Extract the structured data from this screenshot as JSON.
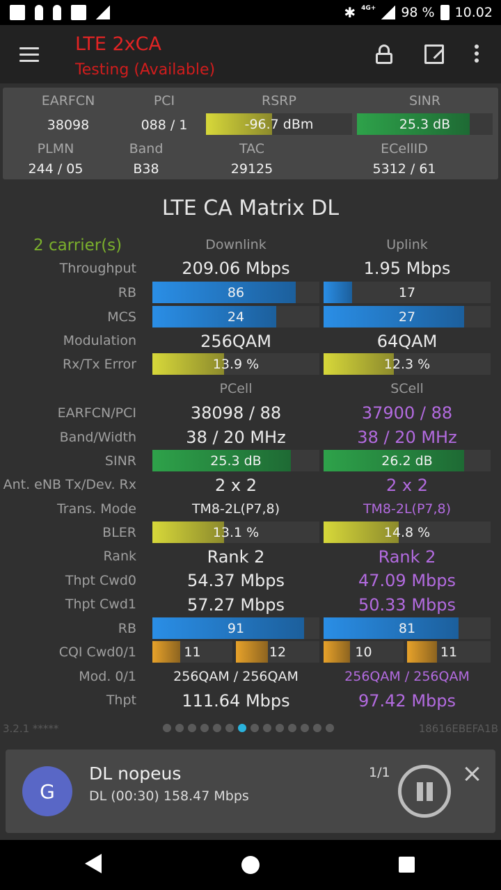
{
  "statusbar": {
    "battery": "98 %",
    "time": "10.02",
    "network": "4G+"
  },
  "appbar": {
    "title": "LTE 2xCA",
    "subtitle": "Testing (Available)"
  },
  "info": {
    "labels": {
      "earfcn": "EARFCN",
      "pci": "PCI",
      "rsrp": "RSRP",
      "sinr": "SINR",
      "plmn": "PLMN",
      "band": "Band",
      "tac": "TAC",
      "ecellid": "ECellID"
    },
    "earfcn": "38098",
    "pci": "088 / 1",
    "rsrp": {
      "text": "-96.7 dBm",
      "level": 0.45
    },
    "sinr": {
      "text": "25.3 dB",
      "level": 0.83
    },
    "plmn": "244 / 05",
    "band": "B38",
    "tac": "29125",
    "ecellid": "5312 / 61"
  },
  "matrix": {
    "title": "LTE CA Matrix DL",
    "carriers": "2 carrier(s)",
    "headers": {
      "downlink": "Downlink",
      "uplink": "Uplink",
      "pcell": "PCell",
      "scell": "SCell"
    },
    "labels": {
      "throughput": "Throughput",
      "rb": "RB",
      "mcs": "MCS",
      "modulation": "Modulation",
      "rxtx_error": "Rx/Tx Error",
      "earfcn_pci": "EARFCN/PCI",
      "band_width": "Band/Width",
      "sinr": "SINR",
      "ant": "Ant. eNB Tx/Dev. Rx",
      "trans_mode": "Trans. Mode",
      "bler": "BLER",
      "rank": "Rank",
      "thpt_cwd0": "Thpt Cwd0",
      "thpt_cwd1": "Thpt Cwd1",
      "rb2": "RB",
      "cqi": "CQI Cwd0/1",
      "mod01": "Mod. 0/1",
      "thpt": "Thpt"
    },
    "downlink": {
      "throughput": "209.06 Mbps",
      "rb": {
        "text": "86",
        "level": 0.86
      },
      "mcs": {
        "text": "24",
        "level": 0.74
      },
      "modulation": "256QAM",
      "error": {
        "text": "13.9 %",
        "level": 0.43
      }
    },
    "uplink": {
      "throughput": "1.95 Mbps",
      "rb": {
        "text": "17",
        "level": 0.17
      },
      "mcs": {
        "text": "27",
        "level": 0.84
      },
      "modulation": "64QAM",
      "error": {
        "text": "12.3 %",
        "level": 0.42
      }
    },
    "pcell": {
      "earfcn_pci": "38098 / 88",
      "band_width": "38 / 20 MHz",
      "sinr": {
        "text": "25.3 dB",
        "level": 0.83
      },
      "ant": "2 x 2",
      "trans_mode": "TM8-2L(P7,8)",
      "bler": {
        "text": "13.1 %",
        "level": 0.43
      },
      "rank": "Rank 2",
      "thpt_cwd0": "54.37 Mbps",
      "thpt_cwd1": "57.27 Mbps",
      "rb": {
        "text": "91",
        "level": 0.91
      },
      "cqi0": {
        "text": "11",
        "level": 0.35
      },
      "cqi1": {
        "text": "12",
        "level": 0.38
      },
      "mod01": "256QAM / 256QAM",
      "thpt": "111.64 Mbps"
    },
    "scell": {
      "earfcn_pci": "37900 / 88",
      "band_width": "38 / 20 MHz",
      "sinr": {
        "text": "26.2 dB",
        "level": 0.84
      },
      "ant": "2 x 2",
      "trans_mode": "TM8-2L(P7,8)",
      "bler": {
        "text": "14.8 %",
        "level": 0.45
      },
      "rank": "Rank 2",
      "thpt_cwd0": "47.09 Mbps",
      "thpt_cwd1": "50.33 Mbps",
      "rb": {
        "text": "81",
        "level": 0.81
      },
      "cqi0": {
        "text": "10",
        "level": 0.33
      },
      "cqi1": {
        "text": "11",
        "level": 0.36
      },
      "mod01": "256QAM / 256QAM",
      "thpt": "97.42 Mbps"
    }
  },
  "footer": {
    "version": "3.2.1 *****",
    "device_id": "18616EBEFA1B",
    "page_count": 14,
    "active_page": 6
  },
  "notification": {
    "avatar": "G",
    "title": "DL nopeus",
    "text": "DL (00:30) 158.47 Mbps",
    "count": "1/1"
  },
  "colors": {
    "title_red": "#e12424",
    "carrier_green": "#7bb02c",
    "scell_purple": "#b36be0",
    "dot_active": "#2ab2dc"
  }
}
